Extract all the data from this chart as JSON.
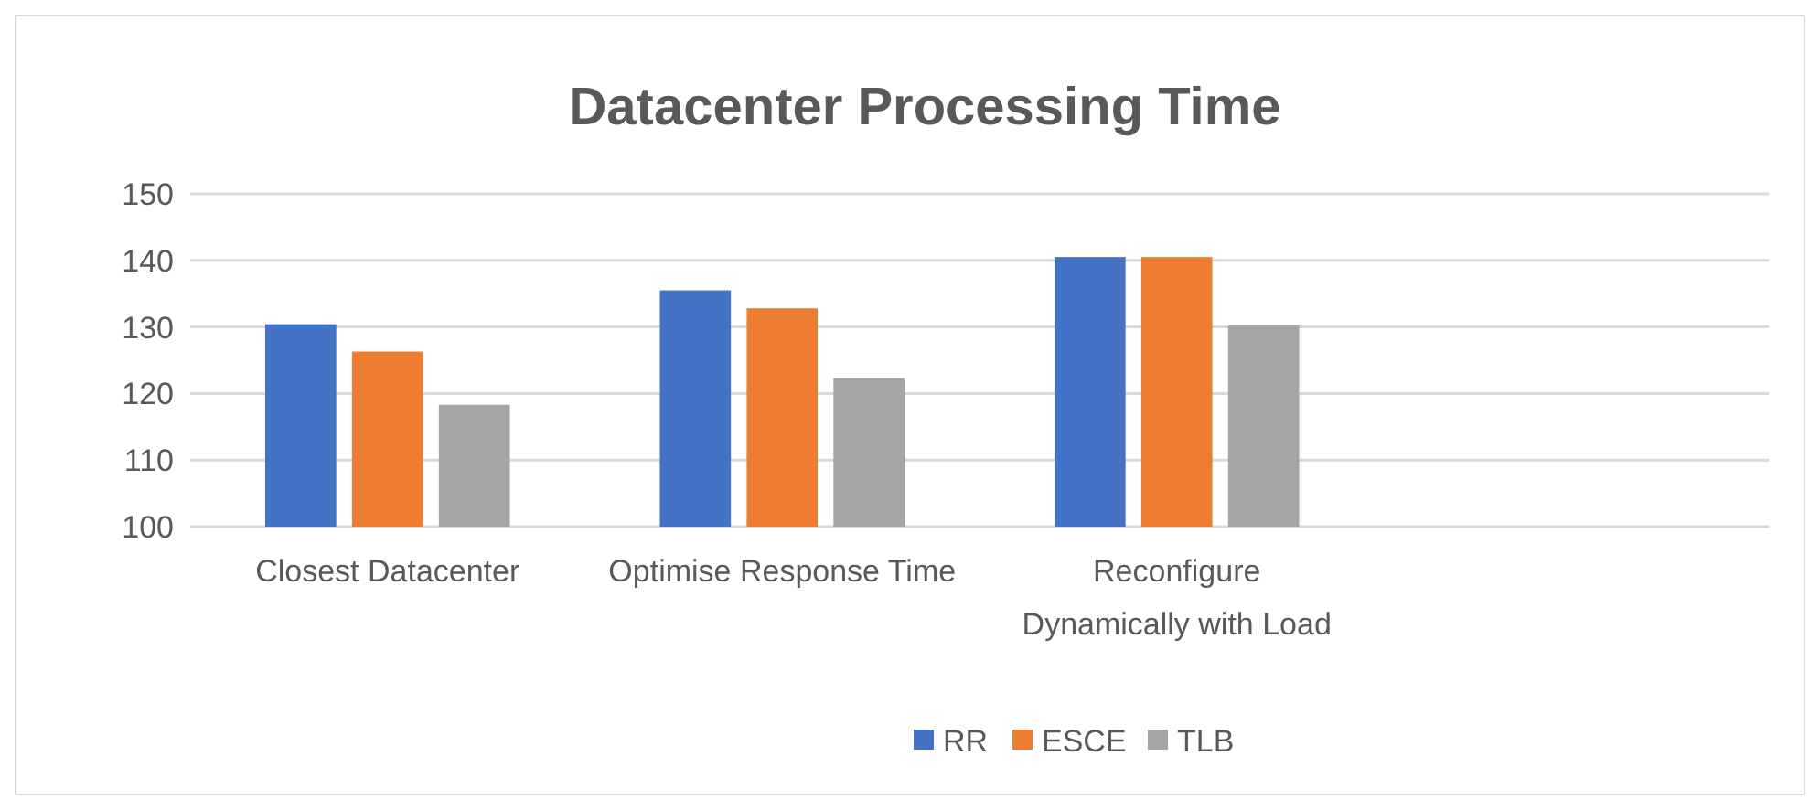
{
  "chart_data": {
    "type": "bar",
    "title": "Datacenter Processing Time",
    "categories": [
      "Closest Datacenter",
      "Optimise Response Time",
      "Reconfigure Dynamically with Load",
      null
    ],
    "series": [
      {
        "name": "RR",
        "color": "#4472c4",
        "values": [
          130.4,
          135.5,
          140.5,
          null
        ]
      },
      {
        "name": "ESCE",
        "color": "#ed7d31",
        "values": [
          126.3,
          132.8,
          140.5,
          null
        ]
      },
      {
        "name": "TLB",
        "color": "#a5a5a5",
        "values": [
          118.3,
          122.3,
          130.2,
          null
        ]
      }
    ],
    "ylim": [
      100,
      150
    ],
    "yticks": [
      100,
      110,
      120,
      130,
      140,
      150
    ],
    "grid": "y",
    "legend": "bottom"
  }
}
